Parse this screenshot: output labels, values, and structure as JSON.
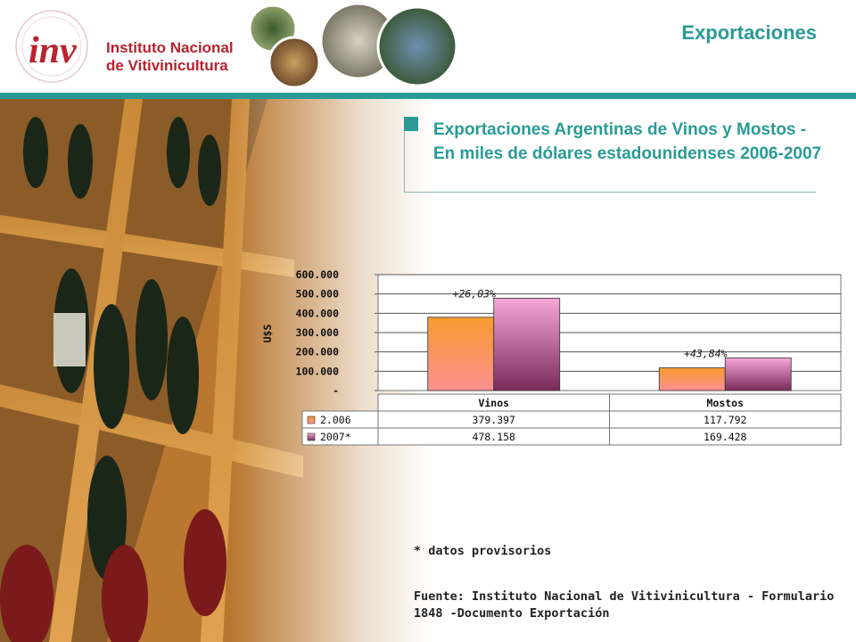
{
  "header": {
    "logo_lines": [
      "Instituto Nacional",
      "de Vitivinicultura"
    ],
    "logo_mark": "inv",
    "section_title": "Exportaciones"
  },
  "heading": "Exportaciones Argentinas de Vinos y Mostos - En miles de dólares estadounidenses 2006-2007",
  "chart_data": {
    "type": "bar",
    "categories": [
      "Vinos",
      "Mostos"
    ],
    "series": [
      {
        "name": "2.006",
        "values": [
          379397,
          117792
        ],
        "display": [
          "379.397",
          "117.792"
        ],
        "color": "#f8a050"
      },
      {
        "name": "2007*",
        "values": [
          478158,
          169428
        ],
        "display": [
          "478.158",
          "169.428"
        ],
        "color": "#c06090"
      }
    ],
    "annotations": [
      "+26,03%",
      "+43,84%"
    ],
    "ylabel": "U$S",
    "ylim": [
      0,
      600000
    ],
    "yticks": [
      "-",
      "100.000",
      "200.000",
      "300.000",
      "400.000",
      "500.000",
      "600.000"
    ],
    "grid": true,
    "legend": "table-left"
  },
  "footnote": "* datos provisorios",
  "source_lines": [
    "Fuente: Instituto Nacional de Vitivinicultura - Formulario",
    "1848 -Documento Exportación"
  ]
}
